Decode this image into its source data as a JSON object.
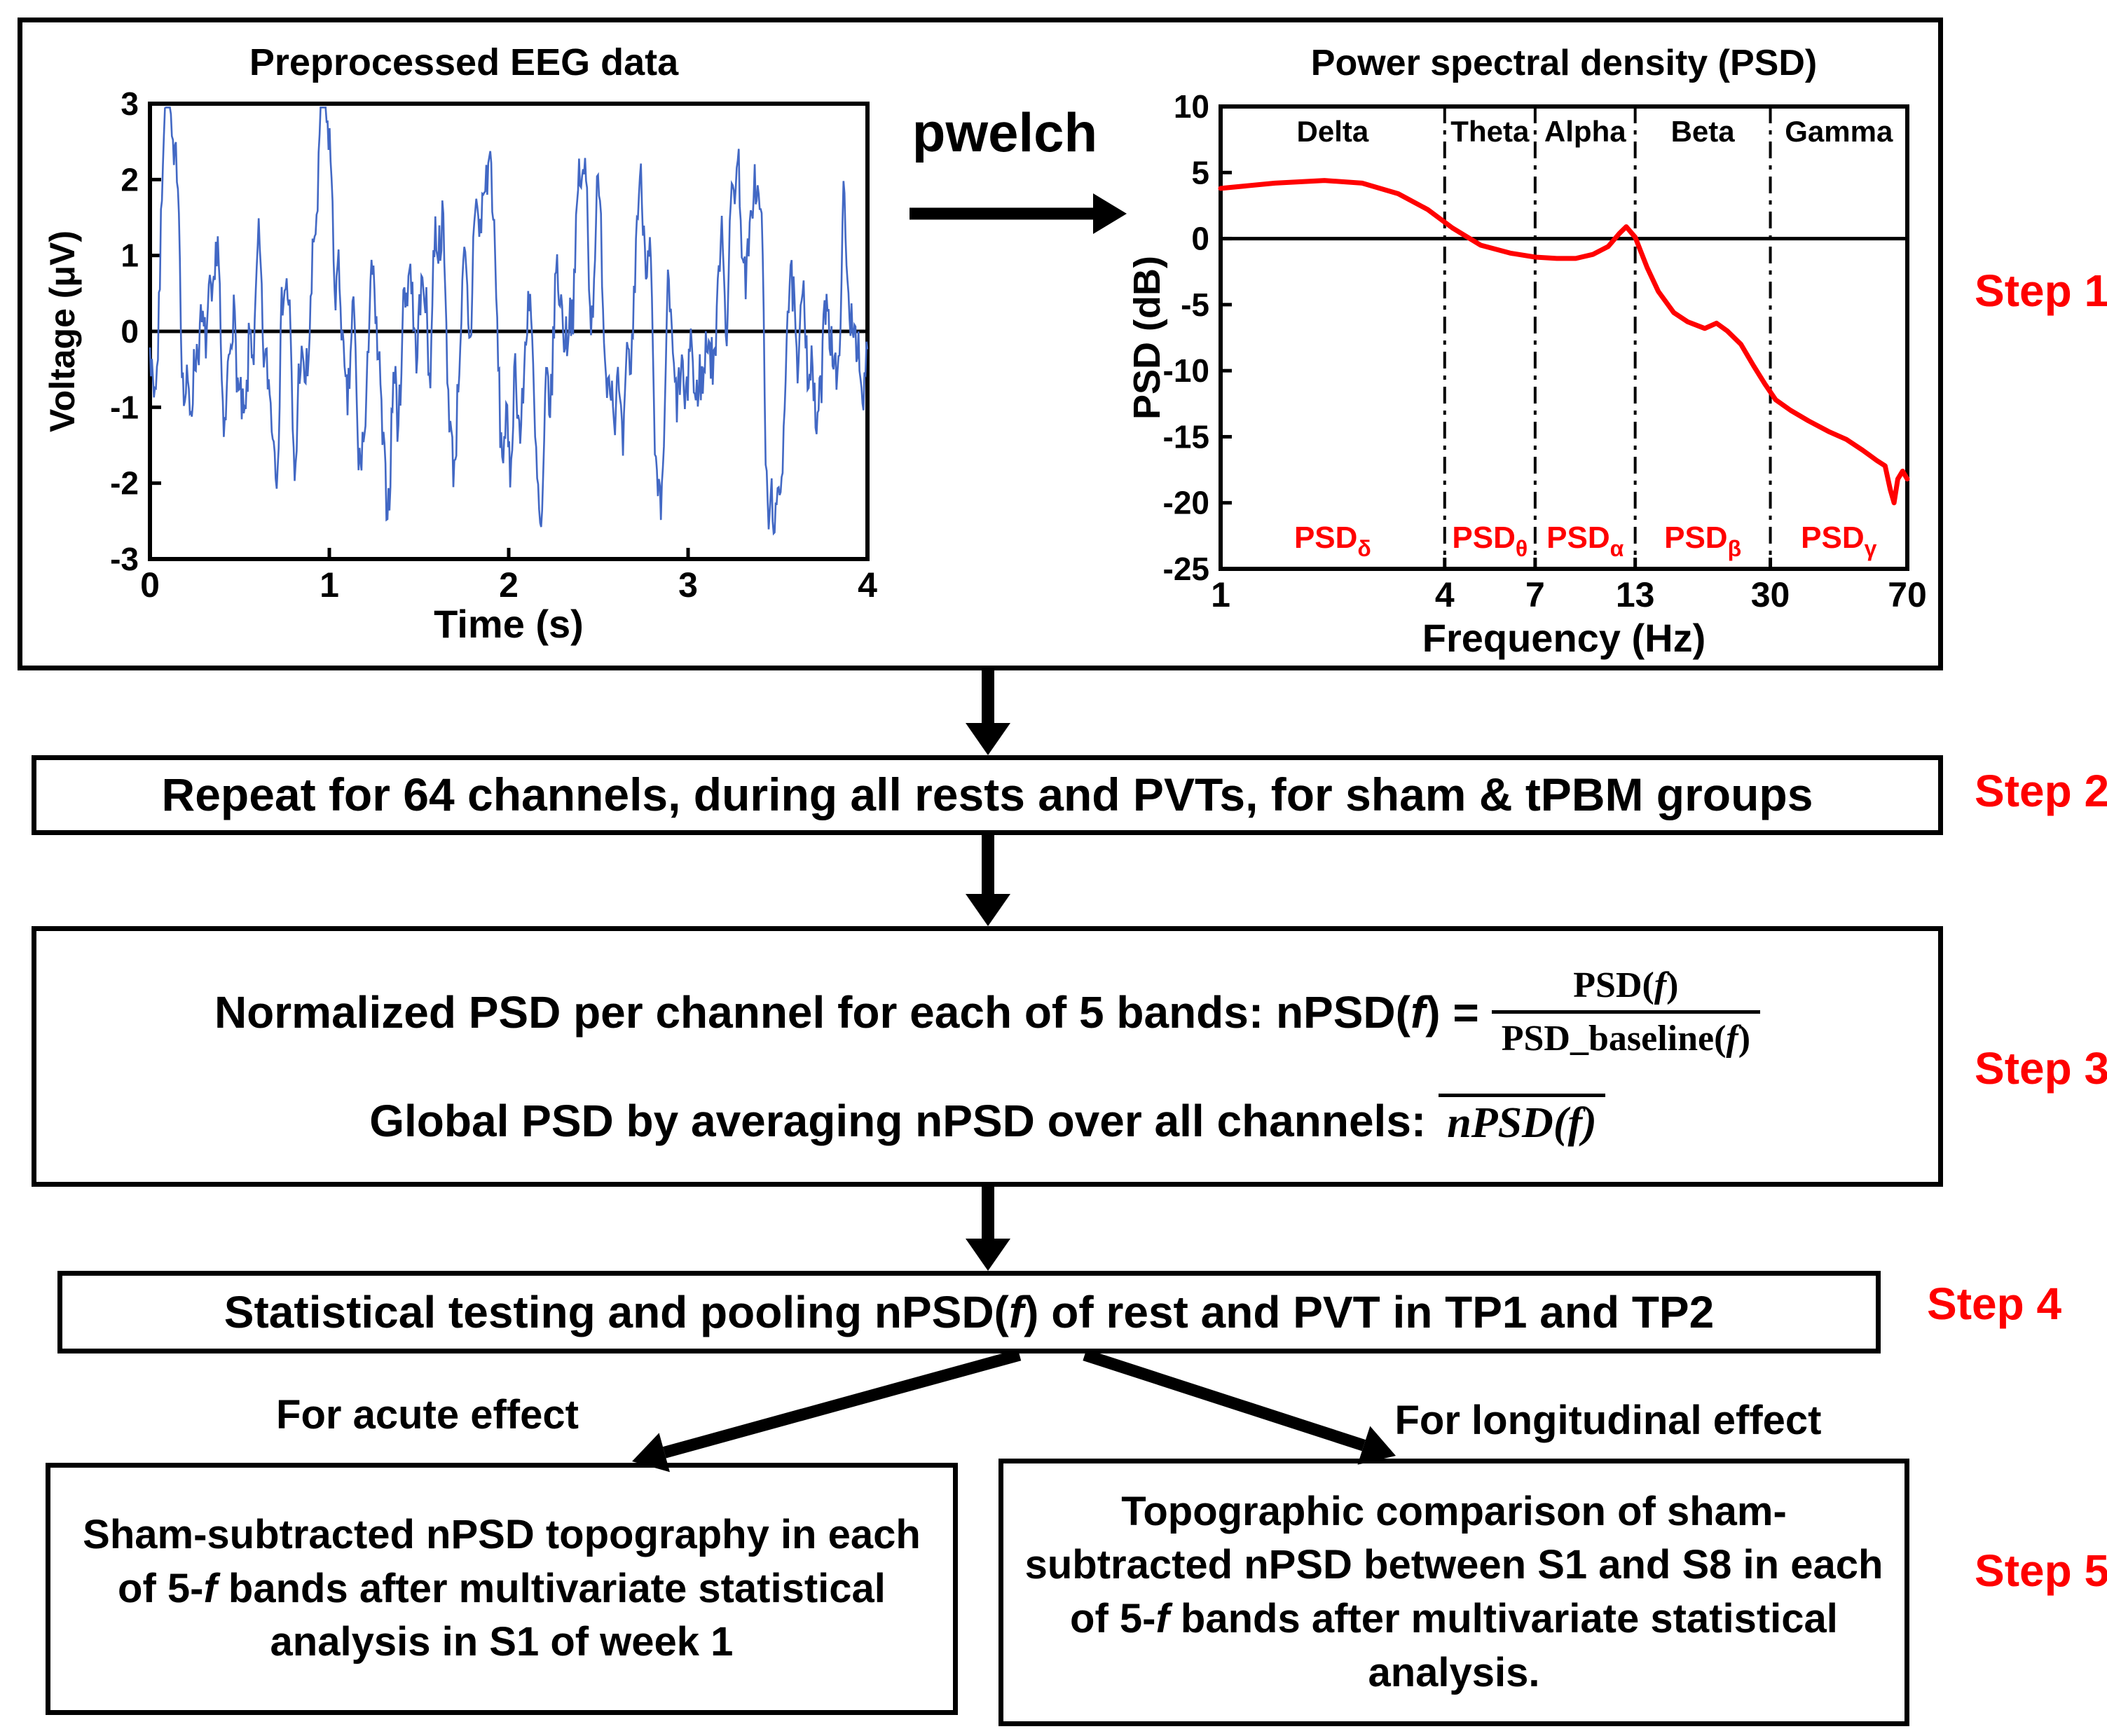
{
  "palette": {
    "accent_red": "#fe0000",
    "eeg_blue": "#4268c4",
    "psd_red": "#ff0000",
    "ink": "#000000"
  },
  "step_labels": {
    "step1": "Step 1",
    "step2": "Step 2",
    "step3": "Step 3",
    "step4": "Step 4",
    "step5": "Step 5"
  },
  "step1": {
    "pwelch_label": "pwelch"
  },
  "chart_data": [
    {
      "type": "line",
      "id": "eeg",
      "title": "Preprocessed EEG data",
      "xlabel": "Time (s)",
      "ylabel": "Voltage (μV)",
      "xlim": [
        0,
        4
      ],
      "ylim": [
        -3,
        3
      ],
      "xticks": [
        0,
        1,
        2,
        3,
        4
      ],
      "yticks": [
        3,
        2,
        1,
        0,
        -1,
        -2,
        -3
      ],
      "zero_line": true,
      "grid": false,
      "line_color": "#4268c4",
      "signal": "synthetic broadband EEG noise trace, about ±3 μV over 4 s",
      "n_points": 720,
      "seed": 7
    },
    {
      "type": "line",
      "id": "psd",
      "title": "Power spectral density (PSD)",
      "xlabel": "Frequency (Hz)",
      "ylabel": "PSD (dB)",
      "x_scale": "log",
      "xlim": [
        1,
        70
      ],
      "ylim": [
        -25,
        10
      ],
      "xticks": [
        1,
        4,
        7,
        13,
        30,
        70
      ],
      "yticks": [
        10,
        5,
        0,
        -5,
        -10,
        -15,
        -20,
        -25
      ],
      "zero_line": true,
      "grid": false,
      "band_boundaries": [
        4,
        7,
        13,
        30
      ],
      "bands": [
        {
          "name": "Delta",
          "psd_label": "PSD",
          "sub": "δ"
        },
        {
          "name": "Theta",
          "psd_label": "PSD",
          "sub": "θ"
        },
        {
          "name": "Alpha",
          "psd_label": "PSD",
          "sub": "α"
        },
        {
          "name": "Beta",
          "psd_label": "PSD",
          "sub": "β"
        },
        {
          "name": "Gamma",
          "psd_label": "PSD",
          "sub": "γ"
        }
      ],
      "line_color": "#ff0000",
      "points": [
        [
          1,
          3.8
        ],
        [
          1.4,
          4.2
        ],
        [
          1.9,
          4.4
        ],
        [
          2.4,
          4.2
        ],
        [
          3,
          3.4
        ],
        [
          3.6,
          2.2
        ],
        [
          4.2,
          0.8
        ],
        [
          5,
          -0.5
        ],
        [
          6,
          -1.1
        ],
        [
          7,
          -1.4
        ],
        [
          8,
          -1.5
        ],
        [
          9,
          -1.5
        ],
        [
          10,
          -1.2
        ],
        [
          11,
          -0.6
        ],
        [
          11.8,
          0.4
        ],
        [
          12.3,
          0.9
        ],
        [
          13,
          0.1
        ],
        [
          14,
          -2.2
        ],
        [
          15,
          -4
        ],
        [
          16.5,
          -5.6
        ],
        [
          18,
          -6.3
        ],
        [
          20,
          -6.8
        ],
        [
          21.5,
          -6.4
        ],
        [
          23,
          -7
        ],
        [
          25,
          -8
        ],
        [
          27,
          -9.6
        ],
        [
          29,
          -11
        ],
        [
          31,
          -12.2
        ],
        [
          34,
          -13
        ],
        [
          38,
          -13.8
        ],
        [
          43,
          -14.6
        ],
        [
          48,
          -15.2
        ],
        [
          53,
          -16
        ],
        [
          58,
          -16.8
        ],
        [
          61,
          -17.2
        ],
        [
          63,
          -19
        ],
        [
          64.5,
          -20
        ],
        [
          66,
          -18.2
        ],
        [
          68,
          -17.6
        ],
        [
          70,
          -18.2
        ]
      ]
    }
  ],
  "step2": {
    "text": "Repeat for 64 channels, during all rests and PVTs, for sham & tPBM groups"
  },
  "step3": {
    "line1_a": "Normalized PSD per channel for each of 5 bands:  nPSD(",
    "f": "f",
    "line1_b": ") =",
    "frac_num_a": "PSD(",
    "frac_num_b": ")",
    "frac_den_a": "PSD_baseline(",
    "frac_den_b": ")",
    "line2_a": "Global PSD by averaging nPSD over all channels:",
    "line2_math": "nPSD(f)"
  },
  "step4": {
    "text_a": "Statistical testing and pooling nPSD(",
    "f": "f",
    "text_b": ") of rest and PVT in TP1 and TP2"
  },
  "branches": {
    "acute": "For acute effect",
    "longitudinal": "For longitudinal  effect"
  },
  "step5": {
    "left_a": "Sham-subtracted nPSD topography in each of 5-",
    "left_f": "f",
    "left_b": " bands after multivariate statistical analysis in S1 of week 1",
    "right_a": "Topographic comparison of sham-subtracted nPSD between S1 and S8 in each of 5-",
    "right_f": "f",
    "right_b": " bands after multivariate statistical analysis."
  }
}
